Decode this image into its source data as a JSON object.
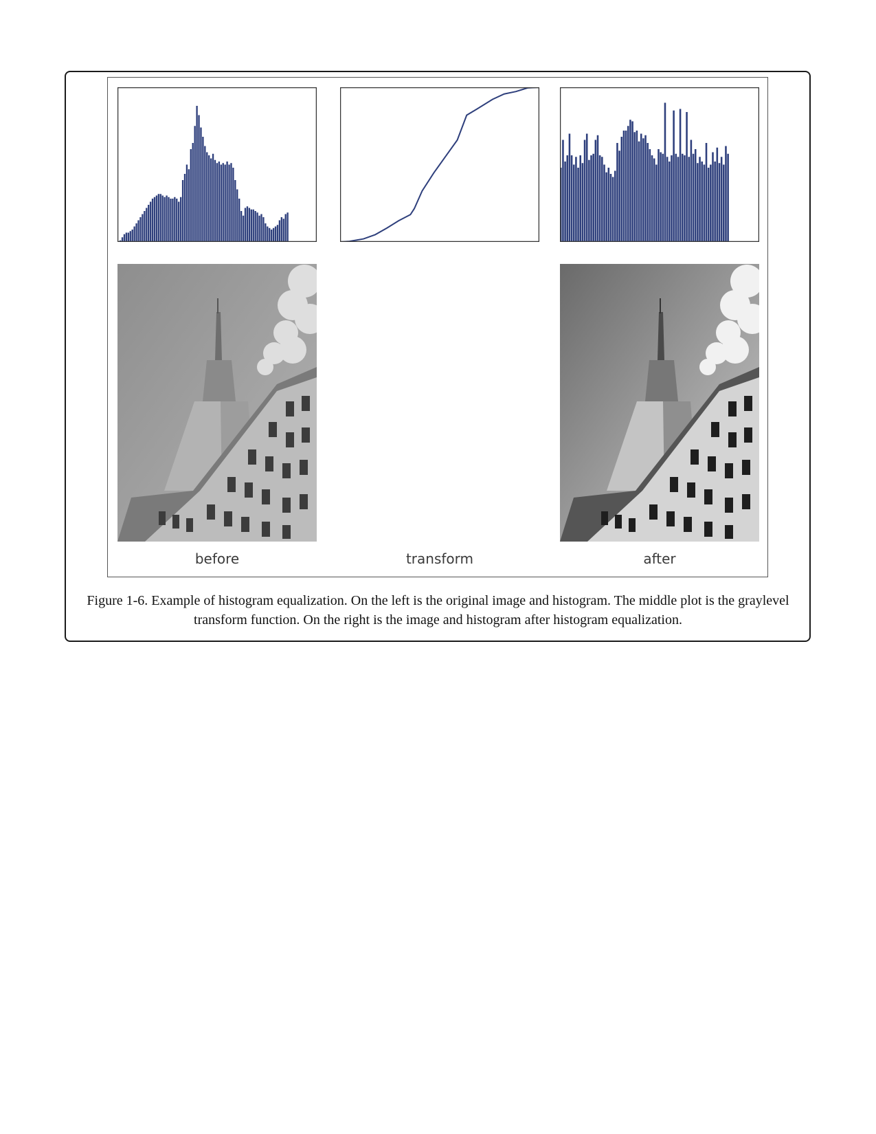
{
  "figure": {
    "panel_labels": {
      "before": "before",
      "transform": "transform",
      "after": "after"
    },
    "caption": "Figure 1-6. Example of histogram equalization. On the left is the original image and histogram. The middle plot is the graylevel transform function. On the right is the image and histogram after histogram equalization."
  },
  "colors": {
    "series": "#2e3f7c",
    "frame": "#333333",
    "sky_light": "#d0d0d0",
    "sky_dark": "#888888"
  },
  "chart_data": [
    {
      "type": "bar",
      "xlim": [
        0,
        255
      ],
      "ylim": [
        0,
        1
      ],
      "grid": false,
      "values": [
        0.0,
        0.01,
        0.03,
        0.05,
        0.06,
        0.06,
        0.07,
        0.08,
        0.1,
        0.12,
        0.14,
        0.16,
        0.18,
        0.2,
        0.22,
        0.24,
        0.26,
        0.28,
        0.29,
        0.3,
        0.31,
        0.31,
        0.3,
        0.29,
        0.3,
        0.29,
        0.28,
        0.28,
        0.29,
        0.28,
        0.26,
        0.29,
        0.4,
        0.44,
        0.5,
        0.47,
        0.6,
        0.64,
        0.75,
        0.88,
        0.82,
        0.74,
        0.68,
        0.62,
        0.58,
        0.56,
        0.54,
        0.57,
        0.53,
        0.51,
        0.52,
        0.5,
        0.51,
        0.5,
        0.52,
        0.5,
        0.51,
        0.48,
        0.4,
        0.34,
        0.28,
        0.2,
        0.17,
        0.22,
        0.23,
        0.22,
        0.21,
        0.21,
        0.2,
        0.19,
        0.17,
        0.18,
        0.16,
        0.12,
        0.1,
        0.09,
        0.08,
        0.09,
        0.1,
        0.11,
        0.14,
        0.16,
        0.15,
        0.18,
        0.19
      ]
    },
    {
      "type": "line",
      "xlim": [
        0,
        255
      ],
      "ylim": [
        0,
        255
      ],
      "grid": false,
      "x": [
        0,
        12,
        30,
        45,
        60,
        75,
        90,
        95,
        105,
        120,
        135,
        150,
        162,
        175,
        195,
        210,
        225,
        240,
        255
      ],
      "y": [
        0,
        1,
        5,
        12,
        23,
        35,
        45,
        55,
        84,
        114,
        141,
        168,
        209,
        219,
        235,
        244,
        248,
        254,
        255
      ]
    },
    {
      "type": "bar",
      "xlim": [
        0,
        255
      ],
      "ylim": [
        0,
        1
      ],
      "grid": false,
      "values": [
        0.48,
        0.66,
        0.52,
        0.56,
        0.7,
        0.56,
        0.5,
        0.55,
        0.48,
        0.56,
        0.51,
        0.66,
        0.7,
        0.53,
        0.56,
        0.57,
        0.66,
        0.69,
        0.56,
        0.55,
        0.5,
        0.45,
        0.48,
        0.44,
        0.42,
        0.46,
        0.64,
        0.59,
        0.68,
        0.72,
        0.72,
        0.75,
        0.79,
        0.78,
        0.71,
        0.72,
        0.65,
        0.7,
        0.67,
        0.69,
        0.64,
        0.6,
        0.56,
        0.54,
        0.5,
        0.6,
        0.58,
        0.57,
        0.9,
        0.55,
        0.52,
        0.56,
        0.85,
        0.57,
        0.55,
        0.86,
        0.57,
        0.56,
        0.84,
        0.55,
        0.66,
        0.57,
        0.6,
        0.51,
        0.55,
        0.52,
        0.5,
        0.64,
        0.48,
        0.5,
        0.58,
        0.52,
        0.61,
        0.51,
        0.55,
        0.5,
        0.62,
        0.57
      ]
    }
  ]
}
